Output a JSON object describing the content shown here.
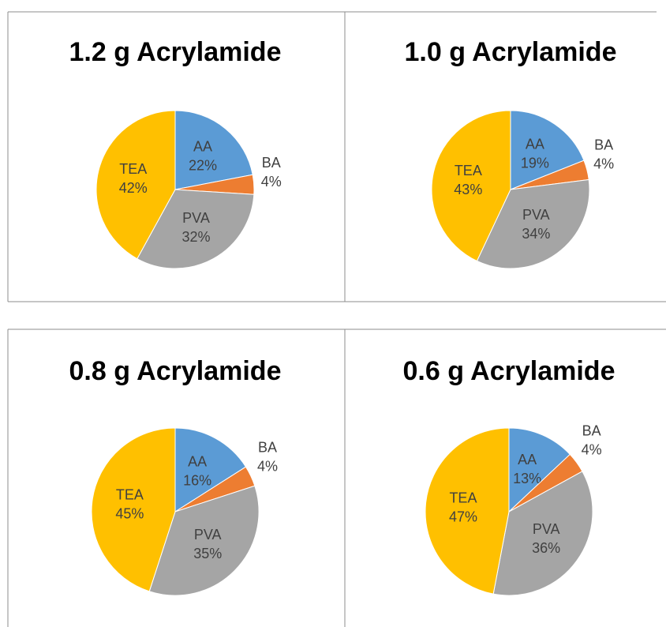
{
  "chart_data": [
    {
      "type": "pie",
      "title": "1.2 g Acrylamide",
      "categories": [
        "AA",
        "BA",
        "PVA",
        "TEA"
      ],
      "values": [
        22,
        4,
        32,
        42
      ],
      "value_labels": [
        "22%",
        "4%",
        "32%",
        "42%"
      ],
      "colors": [
        "#5b9bd5",
        "#ed7d31",
        "#a5a5a5",
        "#ffc000"
      ]
    },
    {
      "type": "pie",
      "title": "1.0 g Acrylamide",
      "categories": [
        "AA",
        "BA",
        "PVA",
        "TEA"
      ],
      "values": [
        19,
        4,
        34,
        43
      ],
      "value_labels": [
        "19%",
        "4%",
        "34%",
        "43%"
      ],
      "colors": [
        "#5b9bd5",
        "#ed7d31",
        "#a5a5a5",
        "#ffc000"
      ]
    },
    {
      "type": "pie",
      "title": "0.8 g Acrylamide",
      "categories": [
        "AA",
        "BA",
        "PVA",
        "TEA"
      ],
      "values": [
        16,
        4,
        35,
        45
      ],
      "value_labels": [
        "16%",
        "4%",
        "35%",
        "45%"
      ],
      "colors": [
        "#5b9bd5",
        "#ed7d31",
        "#a5a5a5",
        "#ffc000"
      ]
    },
    {
      "type": "pie",
      "title": "0.6 g Acrylamide",
      "categories": [
        "AA",
        "BA",
        "PVA",
        "TEA"
      ],
      "values": [
        13,
        4,
        36,
        47
      ],
      "value_labels": [
        "13%",
        "4%",
        "36%",
        "47%"
      ],
      "colors": [
        "#5b9bd5",
        "#ed7d31",
        "#a5a5a5",
        "#ffc000"
      ]
    }
  ]
}
